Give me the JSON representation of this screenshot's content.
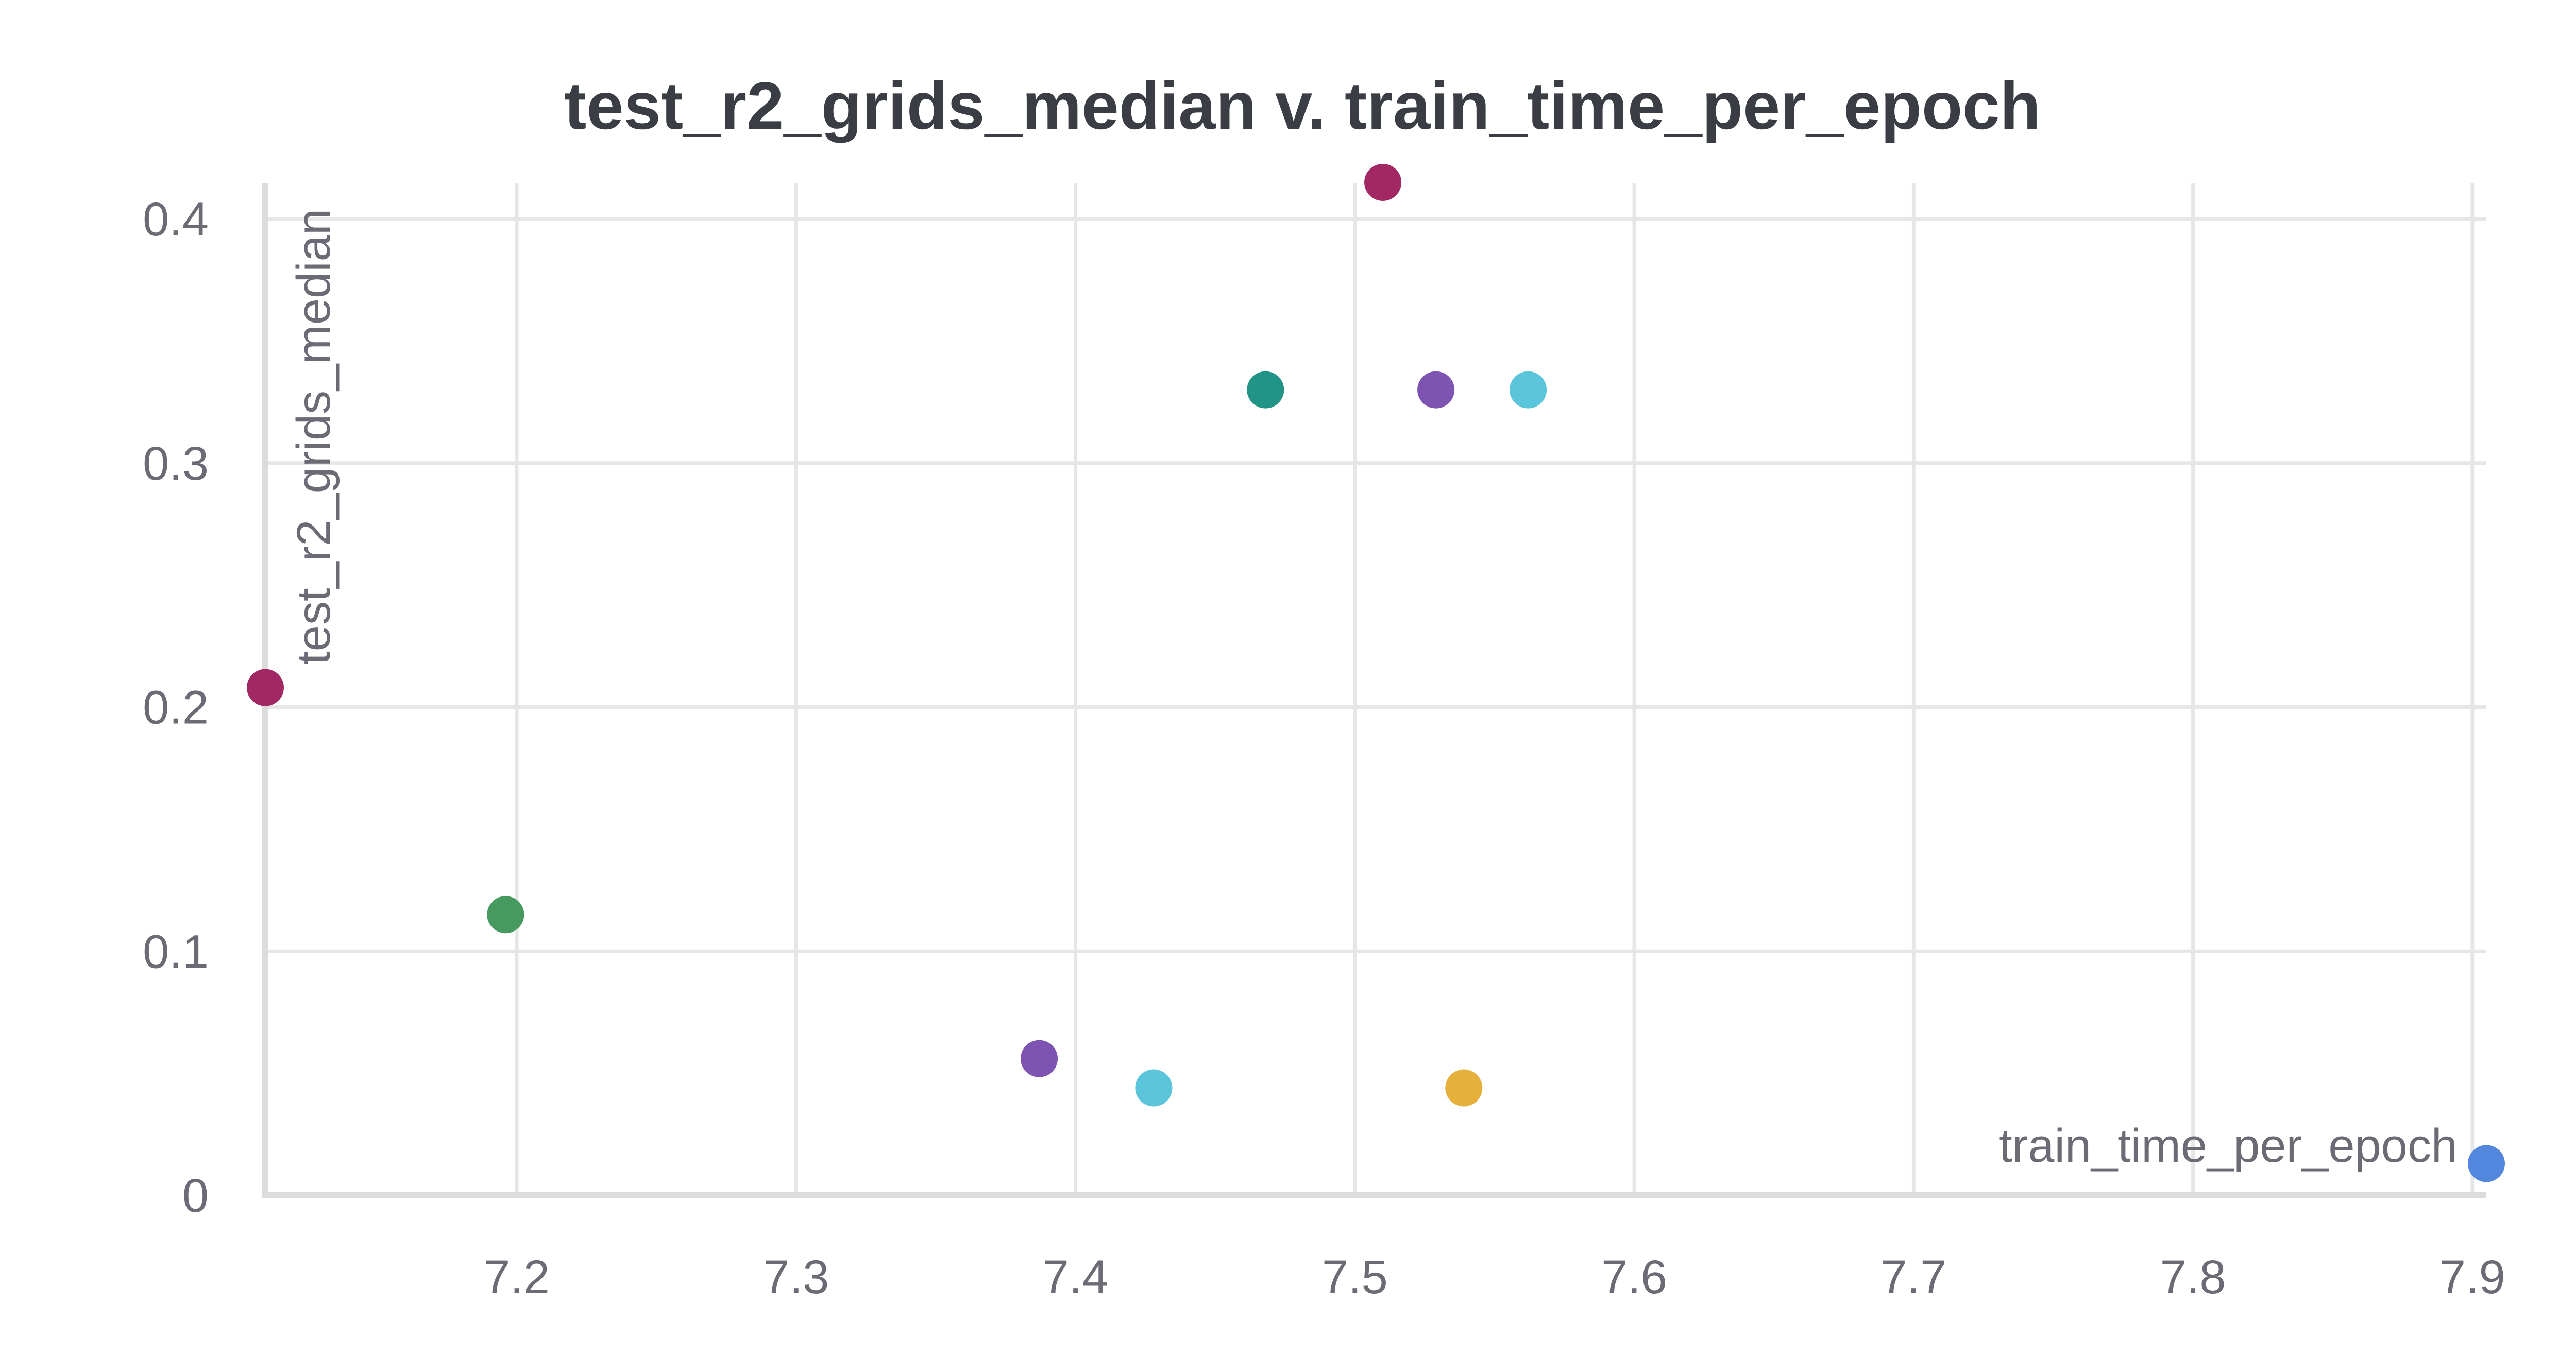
{
  "chart_data": {
    "type": "scatter",
    "title": "test_r2_grids_median v. train_time_per_epoch",
    "xlabel": "train_time_per_epoch",
    "ylabel": "test_r2_grids_median",
    "xlim": [
      7.11,
      7.905
    ],
    "ylim": [
      0,
      0.4
    ],
    "xticks": [
      7.2,
      7.3,
      7.4,
      7.5,
      7.6,
      7.7,
      7.8,
      7.9
    ],
    "xtick_labels": [
      "7.2",
      "7.3",
      "7.4",
      "7.5",
      "7.6",
      "7.7",
      "7.8",
      "7.9"
    ],
    "yticks": [
      0,
      0.1,
      0.2,
      0.3,
      0.4
    ],
    "ytick_labels": [
      "0",
      "0.1",
      "0.2",
      "0.3",
      "0.4"
    ],
    "grid": true,
    "legend": "none",
    "points": [
      {
        "x": 7.11,
        "y": 0.208,
        "color": "#a12864"
      },
      {
        "x": 7.196,
        "y": 0.115,
        "color": "#479a5f"
      },
      {
        "x": 7.387,
        "y": 0.056,
        "color": "#7d54b2"
      },
      {
        "x": 7.428,
        "y": 0.044,
        "color": "#5bc5db"
      },
      {
        "x": 7.468,
        "y": 0.33,
        "color": "#229487"
      },
      {
        "x": 7.51,
        "y": 0.415,
        "color": "#a12864"
      },
      {
        "x": 7.529,
        "y": 0.33,
        "color": "#7d54b2"
      },
      {
        "x": 7.539,
        "y": 0.044,
        "color": "#e5b13a"
      },
      {
        "x": 7.562,
        "y": 0.33,
        "color": "#5bc5db"
      },
      {
        "x": 7.905,
        "y": 0.013,
        "color": "#5387dd"
      }
    ]
  }
}
